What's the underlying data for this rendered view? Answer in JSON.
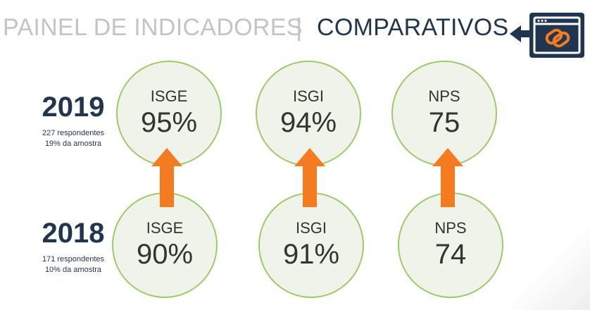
{
  "header": {
    "title_part1": "PAINEL DE INDICADORES",
    "separator": "|",
    "title_part2": "COMPARATIVOS",
    "icon_name": "link-chain-icon"
  },
  "colors": {
    "navy": "#1f3550",
    "circle_border": "#9ccc65",
    "circle_fill": "#eff3ea",
    "arrow": "#f47b20",
    "title_light": "#c4c4c4"
  },
  "years": [
    {
      "year": "2019",
      "respondentes": "227 respondentes",
      "amostra": "19% da amostra"
    },
    {
      "year": "2018",
      "respondentes": "171 respondentes",
      "amostra": "10% da amostra"
    }
  ],
  "indicators_2019": [
    {
      "label": "ISGE",
      "value": "95%"
    },
    {
      "label": "ISGI",
      "value": "94%"
    },
    {
      "label": "NPS",
      "value": "75"
    }
  ],
  "indicators_2018": [
    {
      "label": "ISGE",
      "value": "90%"
    },
    {
      "label": "ISGI",
      "value": "91%"
    },
    {
      "label": "NPS",
      "value": "74"
    }
  ],
  "arrows_icon_name": "up-arrow-icon"
}
